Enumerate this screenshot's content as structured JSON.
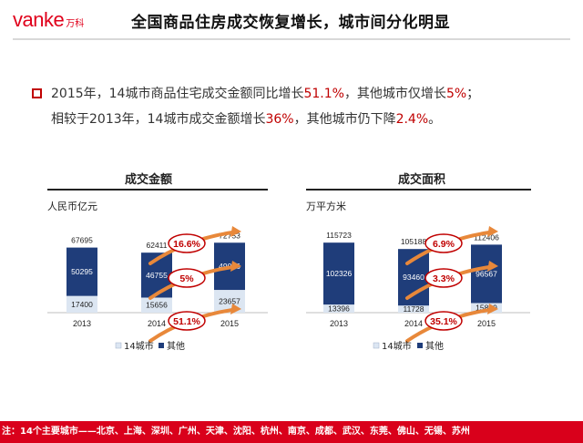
{
  "header": {
    "logo_text": "vanke",
    "logo_cn": "万科",
    "title": "全国商品住房成交恢复增长，城市间分化明显"
  },
  "bullet": {
    "line1": [
      {
        "t": "2015年，14城市商品住宅成交金额同比增长",
        "hl": false
      },
      {
        "t": "51.1%",
        "hl": true
      },
      {
        "t": "，其他城市仅增长",
        "hl": false
      },
      {
        "t": "5%",
        "hl": true
      },
      {
        "t": "；",
        "hl": false
      }
    ],
    "line2": [
      {
        "t": "相较于2013年，14城市成交金额增长",
        "hl": false
      },
      {
        "t": "36%",
        "hl": true
      },
      {
        "t": "，其他城市仍下降",
        "hl": false
      },
      {
        "t": "2.4%",
        "hl": true
      },
      {
        "t": "。",
        "hl": false
      }
    ]
  },
  "chart_data": [
    {
      "type": "bar",
      "title": "成交金额",
      "ylabel": "人民币亿元",
      "categories": [
        "2013",
        "2014",
        "2015"
      ],
      "series": [
        {
          "name": "14城市",
          "values": [
            17400,
            15656,
            23657
          ],
          "color": "#dce6f2"
        },
        {
          "name": "其他",
          "values": [
            50295,
            46755,
            49096
          ],
          "color": "#1f3d7a"
        }
      ],
      "totals": [
        67695,
        62411,
        72753
      ],
      "annotations": [
        "16.6%",
        "5%",
        "51.1%"
      ],
      "legend": "bottom"
    },
    {
      "type": "bar",
      "title": "成交面积",
      "ylabel": "万平方米",
      "categories": [
        "2013",
        "2014",
        "2015"
      ],
      "series": [
        {
          "name": "14城市",
          "values": [
            13396,
            11728,
            15839
          ],
          "color": "#dce6f2"
        },
        {
          "name": "其他",
          "values": [
            102326,
            93460,
            96567
          ],
          "color": "#1f3d7a"
        }
      ],
      "totals": [
        115723,
        105188,
        112406
      ],
      "annotations": [
        "6.9%",
        "3.3%",
        "35.1%"
      ],
      "legend": "bottom"
    }
  ],
  "footer": {
    "text": "注：14个主要城市——北京、上海、深圳、广州、天津、沈阳、杭州、南京、成都、武汉、东莞、佛山、无锡、苏州"
  }
}
